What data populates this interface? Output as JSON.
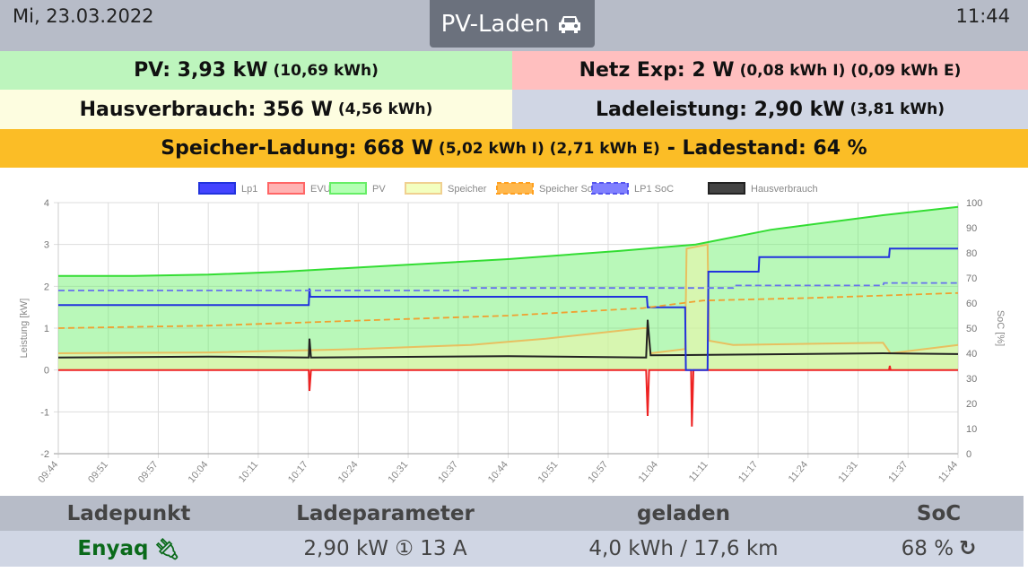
{
  "header": {
    "date": "Mi, 23.03.2022",
    "title": "PV-Laden",
    "time": "11:44"
  },
  "summary": {
    "pv": {
      "main": "PV: 3,93 kW",
      "sub": "(10,69 kWh)"
    },
    "netz": {
      "main": "Netz Exp: 2 W",
      "sub": "(0,08 kWh I) (0,09 kWh E)"
    },
    "haus": {
      "main": "Hausverbrauch: 356 W",
      "sub": "(4,56 kWh)"
    },
    "lade": {
      "main": "Ladeleistung: 2,90 kW",
      "sub": "(3,81 kWh)"
    },
    "speicher": {
      "main": "Speicher-Ladung: 668 W",
      "sub": "(5,02 kWh I) (2,71 kWh E)",
      "soc": "- Ladestand: 64 %"
    }
  },
  "colors": {
    "pv_bg": "#bdf5bd",
    "netz_bg": "#ffbfbf",
    "haus_bg": "#fdfde0",
    "lade_bg": "#d0d6e4",
    "speicher_bg": "#fbbd26"
  },
  "chart_data": {
    "type": "line",
    "legend": [
      "Lp1",
      "EVU",
      "PV",
      "Speicher",
      "Speicher SoC",
      "LP1 SoC",
      "Hausverbrauch"
    ],
    "ylabel": "Leistung [kW]",
    "y2label": "SoC [%]",
    "ylim": [
      -2,
      4
    ],
    "y2lim": [
      0,
      100
    ],
    "yticks": [
      "4",
      "3",
      "2",
      "1",
      "0",
      "-1",
      "-2"
    ],
    "y2ticks": [
      "100",
      "90",
      "80",
      "70",
      "60",
      "50",
      "40",
      "30",
      "20",
      "10",
      "0"
    ],
    "xticks": [
      "09:44",
      "09:51",
      "09:57",
      "10:04",
      "10:11",
      "10:17",
      "10:24",
      "10:31",
      "10:37",
      "10:44",
      "10:51",
      "10:57",
      "11:04",
      "11:11",
      "11:17",
      "11:24",
      "11:31",
      "11:37",
      "11:44"
    ],
    "series": [
      {
        "name": "PV",
        "color": "#33dd33",
        "fill": "rgba(100,240,100,0.45)",
        "points": [
          [
            0,
            2.25
          ],
          [
            10,
            2.25
          ],
          [
            20,
            2.28
          ],
          [
            30,
            2.35
          ],
          [
            45,
            2.5
          ],
          [
            60,
            2.65
          ],
          [
            75,
            2.85
          ],
          [
            85,
            3.0
          ],
          [
            95,
            3.35
          ],
          [
            110,
            3.7
          ],
          [
            120,
            3.9
          ]
        ]
      },
      {
        "name": "Speicher",
        "color": "#e8c060",
        "fill": "rgba(235,245,170,0.6)",
        "points": [
          [
            0,
            0.4
          ],
          [
            20,
            0.42
          ],
          [
            40,
            0.5
          ],
          [
            55,
            0.6
          ],
          [
            65,
            0.75
          ],
          [
            78,
            1.0
          ],
          [
            78.6,
            1.0
          ],
          [
            79,
            0.4
          ],
          [
            83.6,
            0.5
          ],
          [
            83.8,
            2.9
          ],
          [
            86.6,
            3.0
          ],
          [
            86.8,
            0.7
          ],
          [
            90,
            0.6
          ],
          [
            110,
            0.65
          ],
          [
            111,
            0.4
          ],
          [
            120,
            0.6
          ]
        ]
      },
      {
        "name": "Hausverbrauch",
        "color": "#222222",
        "points": [
          [
            0,
            0.3
          ],
          [
            20,
            0.32
          ],
          [
            33.4,
            0.3
          ],
          [
            33.5,
            0.75
          ],
          [
            33.7,
            0.3
          ],
          [
            60,
            0.33
          ],
          [
            78.4,
            0.3
          ],
          [
            78.6,
            1.2
          ],
          [
            79,
            0.35
          ],
          [
            110,
            0.4
          ],
          [
            120,
            0.38
          ]
        ]
      },
      {
        "name": "EVU",
        "color": "#ee2222",
        "points": [
          [
            0,
            0
          ],
          [
            33.4,
            0
          ],
          [
            33.5,
            -0.5
          ],
          [
            33.7,
            0
          ],
          [
            78.4,
            0
          ],
          [
            78.6,
            -1.1
          ],
          [
            78.8,
            0
          ],
          [
            84.4,
            0
          ],
          [
            84.5,
            -1.35
          ],
          [
            84.7,
            0
          ],
          [
            110.8,
            0
          ],
          [
            110.9,
            0.1
          ],
          [
            111,
            0
          ],
          [
            120,
            0
          ]
        ]
      },
      {
        "name": "Lp1",
        "color": "#2233dd",
        "points": [
          [
            0,
            1.55
          ],
          [
            33.4,
            1.55
          ],
          [
            33.5,
            1.95
          ],
          [
            33.6,
            1.75
          ],
          [
            78.5,
            1.75
          ],
          [
            78.6,
            1.5
          ],
          [
            83.6,
            1.5
          ],
          [
            83.7,
            0
          ],
          [
            86.6,
            0
          ],
          [
            86.7,
            2.35
          ],
          [
            93.4,
            2.35
          ],
          [
            93.5,
            2.7
          ],
          [
            110.8,
            2.7
          ],
          [
            110.9,
            2.9
          ],
          [
            120,
            2.9
          ]
        ]
      },
      {
        "name": "Speicher SoC",
        "axis": "soc",
        "color": "#f0a030",
        "dash": true,
        "points": [
          [
            0,
            50
          ],
          [
            20,
            51
          ],
          [
            40,
            53
          ],
          [
            60,
            55
          ],
          [
            78,
            58
          ],
          [
            86,
            61
          ],
          [
            100,
            62
          ],
          [
            110,
            63
          ],
          [
            120,
            64
          ]
        ]
      },
      {
        "name": "LP1 SoC",
        "axis": "soc",
        "color": "#6670ee",
        "dash": true,
        "points": [
          [
            0,
            65
          ],
          [
            55,
            65
          ],
          [
            55.1,
            66
          ],
          [
            90,
            66
          ],
          [
            90.1,
            67
          ],
          [
            110,
            67
          ],
          [
            110.1,
            68
          ],
          [
            120,
            68
          ]
        ]
      }
    ]
  },
  "table": {
    "headers": [
      "Ladepunkt",
      "Ladeparameter",
      "geladen",
      "SoC"
    ],
    "row": {
      "name": "Enyaq",
      "params": "2,90 kW ① 13 A",
      "charged": "4,0 kWh / 17,6 km",
      "soc": "68 %"
    }
  }
}
